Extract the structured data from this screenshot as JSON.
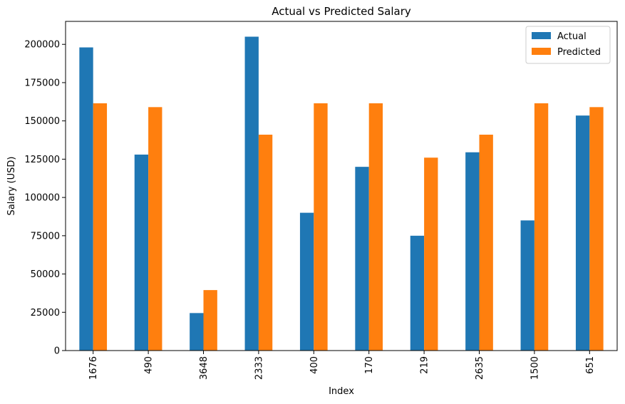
{
  "chart_data": {
    "type": "bar",
    "title": "Actual vs Predicted Salary",
    "xlabel": "Index",
    "ylabel": "Salary (USD)",
    "categories": [
      "1676",
      "490",
      "3648",
      "2333",
      "400",
      "170",
      "219",
      "2635",
      "1500",
      "651"
    ],
    "series": [
      {
        "name": "Actual",
        "color": "#1f77b4",
        "values": [
          198000,
          128000,
          24500,
          205000,
          90000,
          120000,
          75000,
          129500,
          85000,
          153500
        ]
      },
      {
        "name": "Predicted",
        "color": "#ff7f0e",
        "values": [
          161500,
          159000,
          39500,
          141000,
          161500,
          161500,
          126000,
          141000,
          161500,
          159000
        ]
      }
    ],
    "ylim": [
      0,
      215000
    ],
    "yticks": [
      0,
      25000,
      50000,
      75000,
      100000,
      125000,
      150000,
      175000,
      200000
    ],
    "ytick_labels": [
      "0",
      "25000",
      "50000",
      "75000",
      "100000",
      "125000",
      "150000",
      "175000",
      "200000"
    ],
    "grid": false,
    "legend_position": "top-right"
  }
}
